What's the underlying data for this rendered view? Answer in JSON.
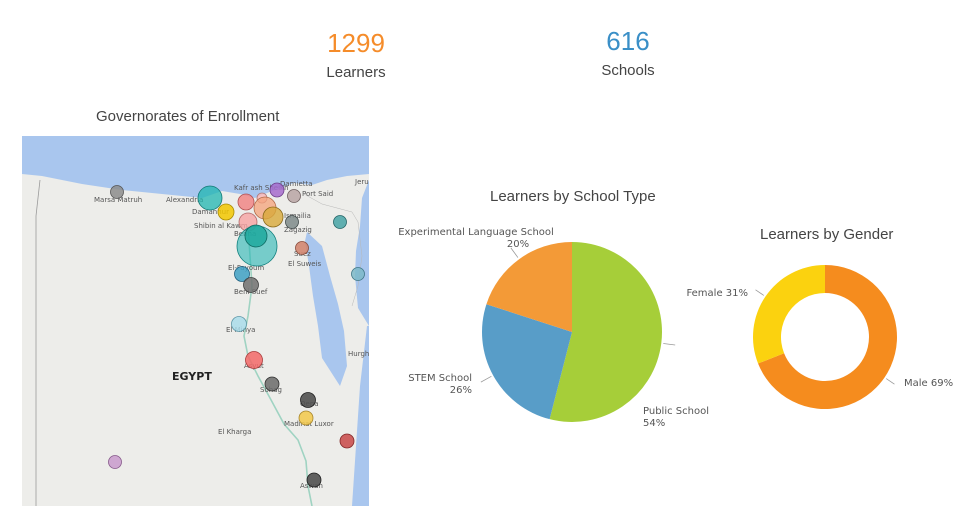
{
  "kpis": {
    "learners": {
      "value": "1299",
      "label": "Learners",
      "color": "#F58C2A"
    },
    "schools": {
      "value": "616",
      "label": "Schools",
      "color": "#3A8FC7"
    }
  },
  "map": {
    "title": "Governorates of Enrollment",
    "country_label": "EGYPT",
    "place_labels": [
      "Marsa Matruh",
      "Alexandria",
      "Damanhur",
      "Kafr ash Sheikh",
      "Damietta",
      "Port Said",
      "Ismailia",
      "Zagazig",
      "Shibin al Kawm",
      "Benha",
      "Suez",
      "El Suweis",
      "El-Fayoum",
      "Beni Suef",
      "El Minya",
      "Asyut",
      "Sohag",
      "Qena",
      "Madinat Luxor",
      "El Kharga",
      "Aswan",
      "Hurgh",
      "Jeru"
    ]
  },
  "chart_data": [
    {
      "type": "pie",
      "title": "Learners by School Type",
      "slices": [
        {
          "label": "Public School",
          "value": 54,
          "color": "#A6CE39"
        },
        {
          "label": "STEM School",
          "value": 26,
          "color": "#589DC8"
        },
        {
          "label": "Experimental Language School",
          "value": 20,
          "color": "#F39A37"
        }
      ]
    },
    {
      "type": "pie",
      "variant": "donut",
      "title": "Learners by Gender",
      "slices": [
        {
          "label": "Male",
          "value": 69,
          "color": "#F58C1E"
        },
        {
          "label": "Female",
          "value": 31,
          "color": "#FBD20F"
        }
      ]
    }
  ]
}
